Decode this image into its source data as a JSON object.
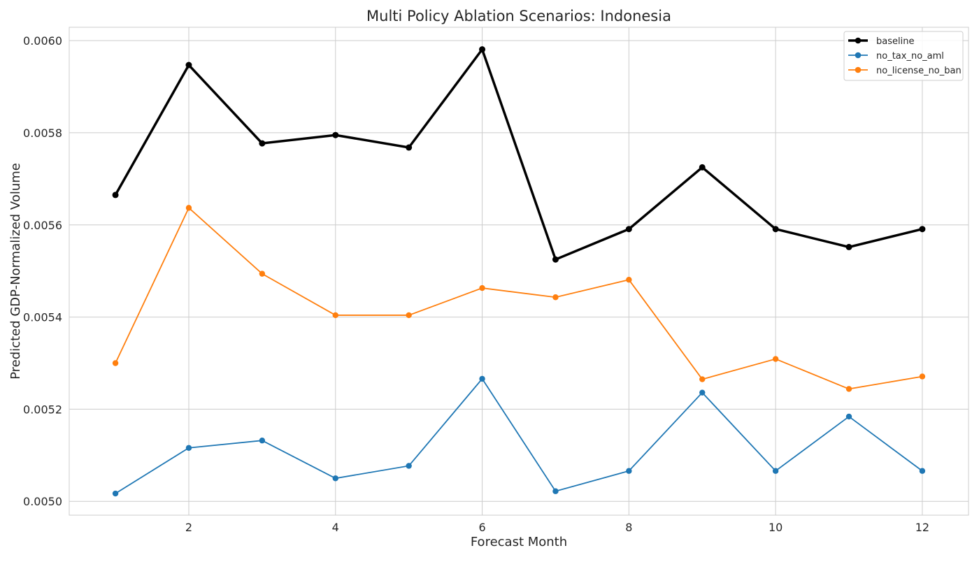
{
  "chart_data": {
    "type": "line",
    "title": "Multi Policy Ablation Scenarios: Indonesia",
    "xlabel": "Forecast Month",
    "ylabel": "Predicted GDP-Normalized Volume",
    "xlim": [
      0.37,
      12.63
    ],
    "ylim": [
      0.00497,
      0.006029
    ],
    "x_ticks": [
      2,
      4,
      6,
      8,
      10,
      12
    ],
    "y_ticks": [
      0.005,
      0.0052,
      0.0054,
      0.0056,
      0.0058,
      0.006
    ],
    "y_tick_labels": [
      "0.0050",
      "0.0052",
      "0.0054",
      "0.0056",
      "0.0058",
      "0.0060"
    ],
    "grid": true,
    "legend_position": "top-right",
    "x": [
      1,
      2,
      3,
      4,
      5,
      6,
      7,
      8,
      9,
      10,
      11,
      12
    ],
    "series": [
      {
        "name": "baseline",
        "color": "#000000",
        "values": [
          0.005665,
          0.005947,
          0.005777,
          0.005795,
          0.005768,
          0.005981,
          0.005525,
          0.005591,
          0.005725,
          0.005591,
          0.005552,
          0.005591
        ]
      },
      {
        "name": "no_tax_no_aml",
        "color": "#1f77b4",
        "values": [
          0.005017,
          0.005116,
          0.005132,
          0.00505,
          0.005077,
          0.005266,
          0.005022,
          0.005066,
          0.005236,
          0.005066,
          0.005184,
          0.005066
        ]
      },
      {
        "name": "no_license_no_ban",
        "color": "#ff7f0e",
        "values": [
          0.0053,
          0.005637,
          0.005494,
          0.005404,
          0.005404,
          0.005463,
          0.005443,
          0.005481,
          0.005265,
          0.005309,
          0.005244,
          0.005271
        ]
      }
    ]
  }
}
